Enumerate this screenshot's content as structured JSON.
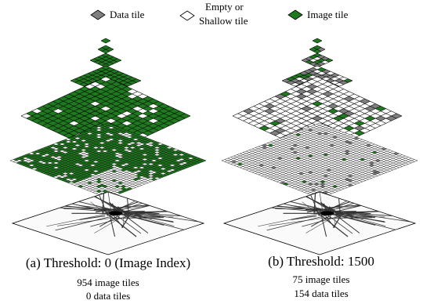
{
  "legend": {
    "items": [
      "Data tile",
      "Empty or",
      "Shallow tile",
      "Image tile"
    ]
  },
  "panels": [
    {
      "caption": "(a) Threshold: 0 (Image Index)",
      "image_tiles": "954 image tiles",
      "data_tiles": "0 data tiles"
    },
    {
      "caption": "(b) Threshold: 1500",
      "image_tiles": "75 image tiles",
      "data_tiles": "154 data tiles"
    }
  ]
}
